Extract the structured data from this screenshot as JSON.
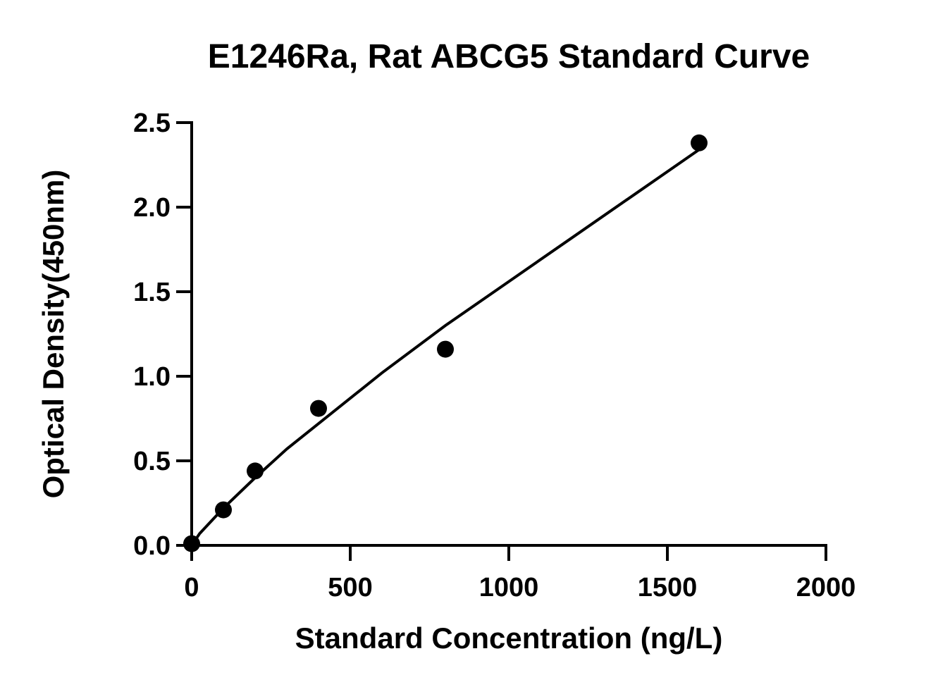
{
  "chart_data": {
    "type": "scatter",
    "title": "E1246Ra, Rat ABCG5 Standard Curve",
    "xlabel": "Standard Concentration (ng/L)",
    "ylabel": "Optical Density(450nm)",
    "xlim": [
      0,
      2000
    ],
    "ylim": [
      0,
      2.5
    ],
    "x_ticks": [
      0,
      500,
      1000,
      1500,
      2000
    ],
    "x_tick_labels": [
      "0",
      "500",
      "1000",
      "1500",
      "2000"
    ],
    "y_ticks": [
      0,
      0.5,
      1.0,
      1.5,
      2.0,
      2.5
    ],
    "y_tick_labels": [
      "0.0",
      "0.5",
      "1.0",
      "1.5",
      "2.0",
      "2.5"
    ],
    "grid": false,
    "legend": "none",
    "series": [
      {
        "x": [
          0,
          100,
          200,
          400,
          800,
          1600
        ],
        "y": [
          0.01,
          0.21,
          0.44,
          0.81,
          1.16,
          2.38
        ]
      }
    ],
    "fit_curve": {
      "x": [
        0,
        25,
        50,
        100,
        200,
        300,
        400,
        600,
        800,
        1000,
        1200,
        1400,
        1600
      ],
      "y": [
        0.0,
        0.07,
        0.12,
        0.22,
        0.4,
        0.57,
        0.72,
        1.02,
        1.3,
        1.56,
        1.82,
        2.08,
        2.34
      ]
    },
    "colors": {
      "axis": "#000000",
      "points": "#000000",
      "curve": "#000000",
      "background": "#ffffff"
    }
  }
}
